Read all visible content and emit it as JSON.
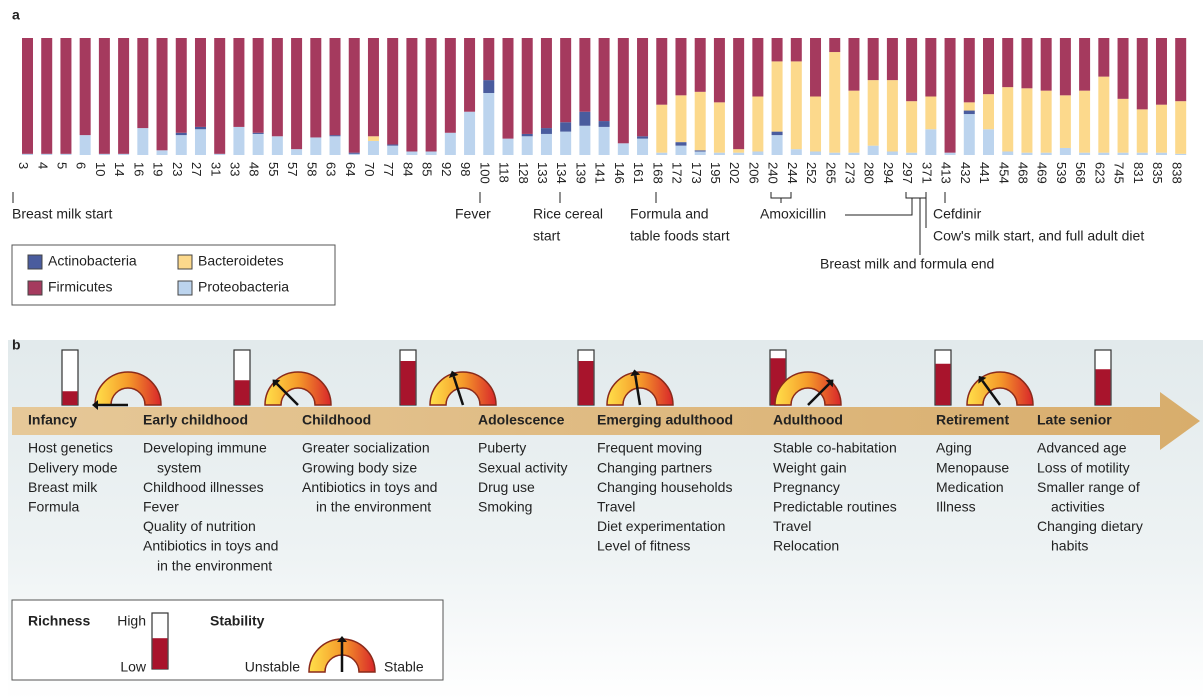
{
  "panel_labels": [
    "a",
    "b"
  ],
  "chart_data": {
    "type": "bar",
    "stacked": true,
    "categories": [
      "3",
      "4",
      "5",
      "6",
      "10",
      "14",
      "16",
      "19",
      "23",
      "27",
      "31",
      "33",
      "48",
      "55",
      "57",
      "58",
      "63",
      "64",
      "70",
      "77",
      "84",
      "85",
      "92",
      "98",
      "100",
      "118",
      "128",
      "133",
      "134",
      "139",
      "141",
      "146",
      "161",
      "168",
      "172",
      "173",
      "195",
      "202",
      "206",
      "240",
      "244",
      "252",
      "265",
      "273",
      "280",
      "294",
      "297",
      "371",
      "413",
      "432",
      "441",
      "454",
      "468",
      "469",
      "539",
      "568",
      "623",
      "745",
      "831",
      "835",
      "838"
    ],
    "ylim": [
      0,
      100
    ],
    "series": [
      {
        "name": "Actinobacteria",
        "color": "#4a5c9e",
        "values": [
          0,
          0,
          0,
          0,
          0,
          0,
          0,
          0,
          2,
          2,
          0,
          0,
          1,
          0,
          0,
          0,
          1,
          1,
          0,
          1,
          0,
          0,
          0,
          0,
          11,
          0,
          2,
          5,
          8,
          12,
          5,
          0,
          2,
          0,
          3,
          1,
          0,
          0,
          0,
          3,
          0,
          0,
          0,
          0,
          0,
          0,
          0,
          0,
          0,
          3,
          0,
          0,
          0,
          0,
          0,
          0,
          0,
          0,
          0,
          0,
          0
        ]
      },
      {
        "name": "Bacteroidetes",
        "color": "#fcd98c",
        "values": [
          0,
          0,
          0,
          0,
          0,
          0,
          0,
          0,
          0,
          0,
          0,
          0,
          0,
          0,
          0,
          0,
          0,
          0,
          4,
          0,
          0,
          0,
          0,
          0,
          0,
          0,
          0,
          0,
          0,
          0,
          0,
          0,
          0,
          41,
          40,
          50,
          43,
          3,
          47,
          60,
          75,
          47,
          86,
          53,
          56,
          61,
          44,
          28,
          0,
          7,
          30,
          55,
          55,
          53,
          45,
          53,
          65,
          46,
          37,
          41,
          45
        ]
      },
      {
        "name": "Firmicutes",
        "color": "#a53a5e",
        "values": [
          99,
          99,
          99,
          83,
          99,
          99,
          77,
          96,
          81,
          76,
          99,
          76,
          81,
          84,
          95,
          85,
          83,
          98,
          84,
          91,
          97,
          97,
          81,
          63,
          36,
          86,
          82,
          77,
          72,
          63,
          71,
          90,
          84,
          57,
          49,
          46,
          55,
          95,
          50,
          20,
          20,
          50,
          12,
          45,
          36,
          36,
          54,
          50,
          98,
          55,
          48,
          42,
          43,
          45,
          49,
          45,
          33,
          52,
          61,
          57,
          54
        ]
      },
      {
        "name": "Proteobacteria",
        "color": "#bcd4ee",
        "values": [
          1,
          1,
          1,
          17,
          1,
          1,
          23,
          4,
          17,
          22,
          1,
          24,
          18,
          16,
          5,
          15,
          16,
          1,
          12,
          8,
          3,
          3,
          19,
          37,
          53,
          14,
          16,
          18,
          20,
          25,
          24,
          10,
          14,
          2,
          8,
          3,
          2,
          2,
          3,
          17,
          5,
          3,
          2,
          2,
          8,
          3,
          2,
          22,
          2,
          35,
          22,
          3,
          2,
          2,
          6,
          2,
          2,
          2,
          2,
          2,
          1
        ]
      }
    ],
    "annotations": [
      "Breast milk start",
      "Fever",
      "Rice cereal",
      "start",
      "Formula and",
      "table foods start",
      "Amoxicillin",
      "Cefdinir",
      "Cow's milk start, and full adult diet",
      "Breast milk and formula end"
    ]
  },
  "panel_b": {
    "stages": [
      {
        "title": "Infancy",
        "items": [
          [
            "Host genetics"
          ],
          [
            "Delivery mode"
          ],
          [
            "Breast milk"
          ],
          [
            "Formula"
          ]
        ]
      },
      {
        "title": "Early childhood",
        "items": [
          [
            "Developing immune",
            "system"
          ],
          [
            "Childhood illnesses"
          ],
          [
            "Fever"
          ],
          [
            "Quality of nutrition"
          ],
          [
            "Antibiotics in toys and",
            "in the environment"
          ]
        ]
      },
      {
        "title": "Childhood",
        "items": [
          [
            "Greater socialization"
          ],
          [
            "Growing body size"
          ],
          [
            "Antibiotics in toys and",
            "in the environment"
          ]
        ]
      },
      {
        "title": "Adolescence",
        "items": [
          [
            "Puberty"
          ],
          [
            "Sexual activity"
          ],
          [
            "Drug use"
          ],
          [
            "Smoking"
          ]
        ]
      },
      {
        "title": "Emerging adulthood",
        "items": [
          [
            "Frequent moving"
          ],
          [
            "Changing partners"
          ],
          [
            "Changing households"
          ],
          [
            "Travel"
          ],
          [
            "Diet experimentation"
          ],
          [
            "Level of fitness"
          ]
        ]
      },
      {
        "title": "Adulthood",
        "items": [
          [
            "Stable co-habitation"
          ],
          [
            "Weight gain"
          ],
          [
            "Pregnancy"
          ],
          [
            "Predictable routines"
          ],
          [
            "Travel"
          ],
          [
            "Relocation"
          ]
        ]
      },
      {
        "title": "Retirement",
        "items": [
          [
            "Aging"
          ],
          [
            "Menopause"
          ],
          [
            "Medication"
          ],
          [
            "Illness"
          ]
        ]
      },
      {
        "title": "Late senior",
        "items": [
          [
            "Advanced age"
          ],
          [
            "Loss of motility"
          ],
          [
            "Smaller range of",
            "activities"
          ],
          [
            "Changing dietary",
            "habits"
          ]
        ]
      }
    ],
    "indicators": [
      {
        "richness": 25,
        "stability": 0
      },
      {
        "richness": 45,
        "stability": 25
      },
      {
        "richness": 80,
        "stability": 40
      },
      {
        "richness": 80,
        "stability": 45
      },
      {
        "richness": 85,
        "stability": 75
      },
      {
        "richness": 75,
        "stability": 30
      },
      {
        "richness": 65
      }
    ],
    "legend": {
      "richness_title": "Richness",
      "high": "High",
      "low": "Low",
      "stability_title": "Stability",
      "unstable": "Unstable",
      "stable": "Stable",
      "richness": 55,
      "stability": 50
    }
  }
}
